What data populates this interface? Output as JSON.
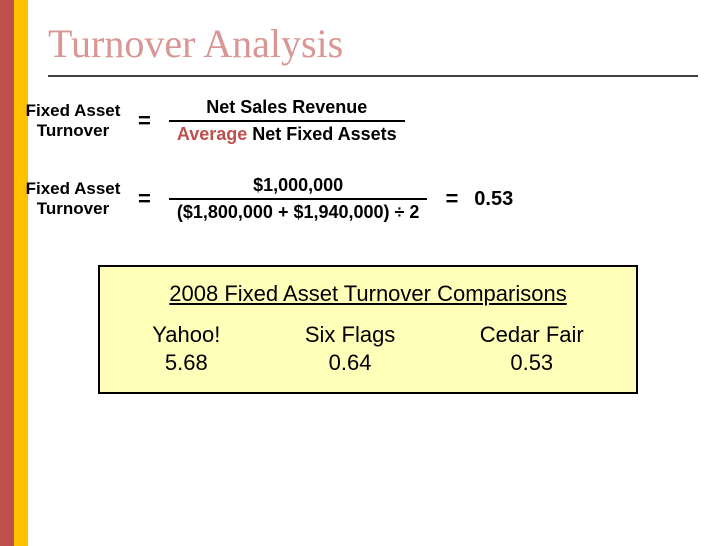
{
  "title": "Turnover Analysis",
  "colors": {
    "stripe_red": "#c0504d",
    "stripe_yellow": "#ffc000",
    "title_color": "#d99694",
    "highlight_red": "#c0504d",
    "comparison_bg": "#ffffb9",
    "text": "#000000"
  },
  "formula1": {
    "lhs": "Fixed Asset Turnover",
    "numerator": "Net Sales Revenue",
    "denom_prefix": "Average",
    "denom_rest": " Net Fixed Assets"
  },
  "formula2": {
    "lhs": "Fixed Asset Turnover",
    "numerator": "$1,000,000",
    "denominator": "($1,800,000 + $1,940,000) ÷ 2",
    "result": "0.53"
  },
  "comparison": {
    "heading": "2008 Fixed Asset Turnover Comparisons",
    "items": [
      {
        "name": "Yahoo!",
        "value": "5.68"
      },
      {
        "name": "Six Flags",
        "value": "0.64"
      },
      {
        "name": "Cedar Fair",
        "value": "0.53"
      }
    ]
  }
}
